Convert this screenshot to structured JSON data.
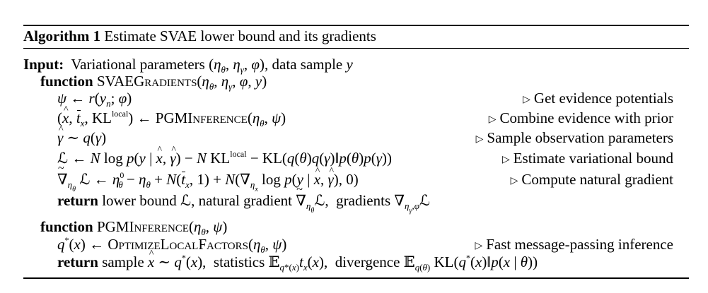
{
  "algorithm": {
    "label": "Algorithm 1",
    "title": "Estimate SVAE lower bound and its gradients"
  },
  "lines": [
    {
      "id": "input",
      "keyword": "Input:",
      "text": "Variational parameters (ηθ, ηγ, φ), data sample y"
    },
    {
      "id": "func1",
      "keyword": "function",
      "text": "SVAEGradients(ηθ, ηγ, φ, y)"
    },
    {
      "id": "l1",
      "text": "ψ ← r(yn; φ)",
      "comment": "Get evidence potentials"
    },
    {
      "id": "l2",
      "text": "(x̂, t̄x, KLlocal) ← PGMInference(ηθ, ψ)",
      "comment": "Combine evidence with prior"
    },
    {
      "id": "l3",
      "text": "γ̂ ~ q(γ)",
      "comment": "Sample observation parameters"
    },
    {
      "id": "l4",
      "text": "ℒ ← N log p(y | x̂, γ̂) − N KLlocal − KL(q(θ)q(γ)‖p(θ)p(γ))",
      "comment": "Estimate variational bound"
    },
    {
      "id": "l5",
      "text": "∇̃ηθ ℒ ← η0θ − ηθ + N(t̄x, 1) + N(∇ηx log p(y | x̂, γ̂), 0)",
      "comment": "Compute natural gradient"
    },
    {
      "id": "l6",
      "keyword": "return",
      "text": "lower bound ℒ, natural gradient ∇̃ηθ ℒ, gradients ∇ηγ,φ ℒ"
    },
    {
      "id": "func2",
      "keyword": "function",
      "text": "PGMInference(ηθ, ψ)"
    },
    {
      "id": "l7",
      "text": "q*(x) ← OptimizeLocalFactors(ηθ, ψ)",
      "comment": "Fast message-passing inference"
    },
    {
      "id": "l8",
      "keyword": "return",
      "text": "sample x̂ ~ q*(x), statistics 𝔼q*(x) tx(x), divergence 𝔼q(θ) KL(q*(x)‖p(x | θ))"
    }
  ]
}
